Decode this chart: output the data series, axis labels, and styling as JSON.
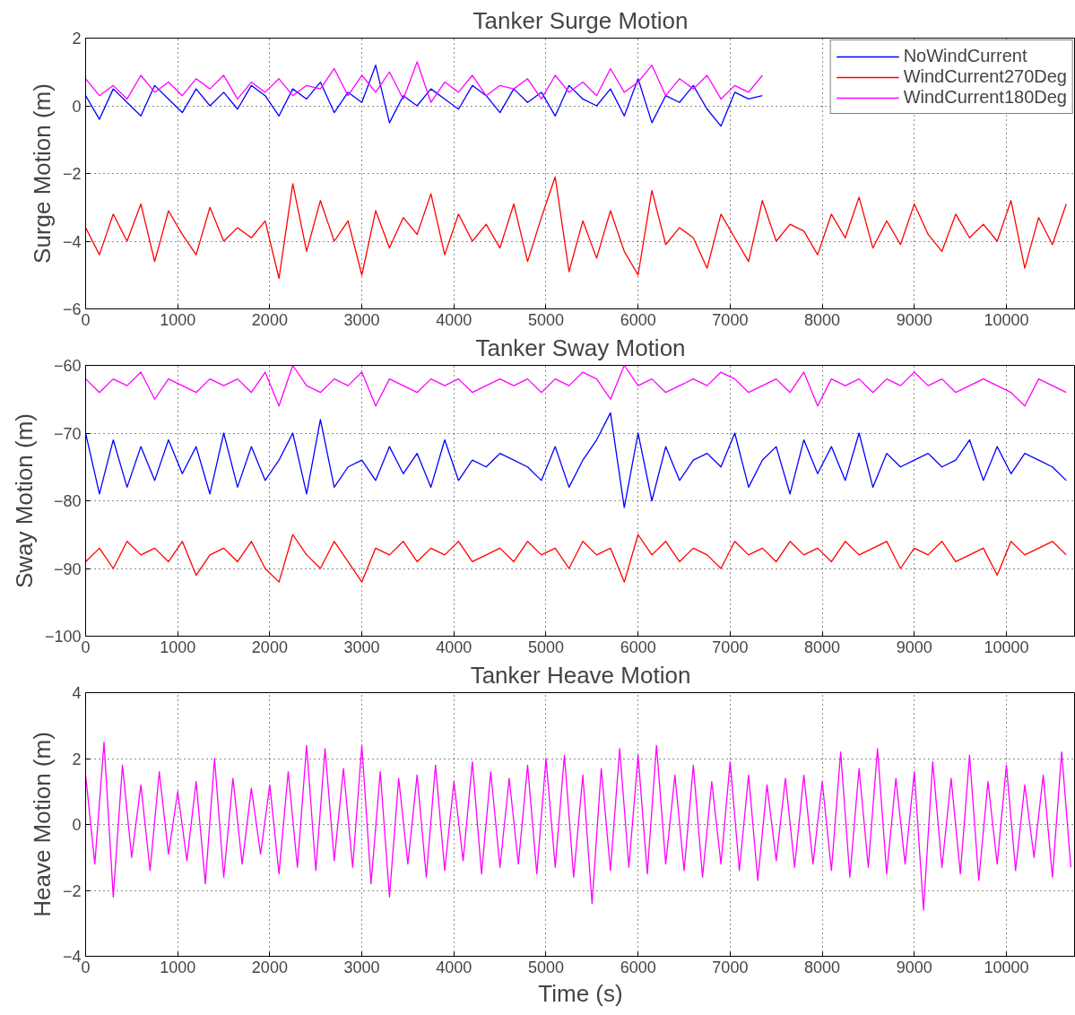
{
  "chart_data": [
    {
      "type": "line",
      "title": "Tanker Surge Motion",
      "ylabel": "Surge Motion (m)",
      "xlim": [
        0,
        10750
      ],
      "xticks": [
        0,
        1000,
        2000,
        3000,
        4000,
        5000,
        6000,
        7000,
        8000,
        9000,
        10000
      ],
      "ylim": [
        -6,
        2
      ],
      "yticks": [
        -6,
        -4,
        -2,
        0,
        2
      ],
      "grid": true,
      "legend": "top right",
      "marker": "none",
      "line_style": "solid",
      "x": [
        0,
        150,
        300,
        450,
        600,
        750,
        900,
        1050,
        1200,
        1350,
        1500,
        1650,
        1800,
        1950,
        2100,
        2250,
        2400,
        2550,
        2700,
        2850,
        3000,
        3150,
        3300,
        3450,
        3600,
        3750,
        3900,
        4050,
        4200,
        4350,
        4500,
        4650,
        4800,
        4950,
        5100,
        5250,
        5400,
        5550,
        5700,
        5850,
        6000,
        6150,
        6300,
        6450,
        6600,
        6750,
        6900,
        7050,
        7200,
        7350,
        7500,
        7650,
        7800,
        7950,
        8100,
        8250,
        8400,
        8550,
        8700,
        8850,
        9000,
        9150,
        9300,
        9450,
        9600,
        9750,
        9900,
        10050,
        10200,
        10350,
        10500,
        10650
      ],
      "series": [
        {
          "name": "NoWindCurrent",
          "color": "#0000ff",
          "values": [
            0.3,
            -0.4,
            0.5,
            0.1,
            -0.3,
            0.6,
            0.2,
            -0.2,
            0.5,
            0.0,
            0.4,
            -0.1,
            0.6,
            0.3,
            -0.3,
            0.5,
            0.2,
            0.7,
            -0.2,
            0.4,
            0.1,
            1.2,
            -0.5,
            0.3,
            0.0,
            0.5,
            0.2,
            -0.1,
            0.6,
            0.3,
            -0.2,
            0.5,
            0.1,
            0.4,
            -0.3,
            0.6,
            0.2,
            0.0,
            0.5,
            -0.3,
            0.8,
            -0.5,
            0.3,
            0.1,
            0.6,
            -0.1,
            -0.6,
            0.4,
            0.2,
            0.3,
            null,
            null,
            null,
            null,
            null,
            null,
            null,
            null,
            null,
            null,
            null,
            null,
            null,
            null,
            null,
            null,
            null,
            null,
            null,
            null,
            null,
            null
          ]
        },
        {
          "name": "WindCurrent270Deg",
          "color": "#ff0000",
          "values": [
            -3.6,
            -4.4,
            -3.2,
            -4.0,
            -2.9,
            -4.6,
            -3.1,
            -3.8,
            -4.4,
            -3.0,
            -4.0,
            -3.6,
            -3.9,
            -3.4,
            -5.1,
            -2.3,
            -4.3,
            -2.8,
            -4.0,
            -3.4,
            -5.0,
            -3.1,
            -4.2,
            -3.3,
            -3.8,
            -2.6,
            -4.4,
            -3.2,
            -4.0,
            -3.5,
            -4.2,
            -2.9,
            -4.6,
            -3.3,
            -2.1,
            -4.9,
            -3.4,
            -4.5,
            -3.1,
            -4.3,
            -5.0,
            -2.5,
            -4.1,
            -3.6,
            -3.9,
            -4.8,
            -3.2,
            -3.9,
            -4.6,
            -2.8,
            -4.0,
            -3.5,
            -3.7,
            -4.4,
            -3.2,
            -3.9,
            -2.7,
            -4.2,
            -3.4,
            -4.1,
            -2.9,
            -3.8,
            -4.3,
            -3.2,
            -3.9,
            -3.5,
            -4.0,
            -2.8,
            -4.8,
            -3.3,
            -4.1,
            -2.9
          ]
        },
        {
          "name": "WindCurrent180Deg",
          "color": "#ff00ff",
          "values": [
            0.8,
            0.3,
            0.6,
            0.2,
            0.9,
            0.4,
            0.7,
            0.3,
            0.8,
            0.5,
            0.9,
            0.2,
            0.7,
            0.4,
            0.8,
            0.3,
            0.6,
            0.5,
            1.1,
            0.3,
            0.9,
            0.4,
            1.0,
            0.2,
            1.3,
            0.1,
            0.7,
            0.4,
            0.9,
            0.3,
            0.6,
            0.5,
            0.8,
            0.2,
            0.9,
            0.4,
            0.7,
            0.3,
            1.1,
            0.4,
            0.7,
            1.2,
            0.3,
            0.8,
            0.5,
            0.9,
            0.2,
            0.6,
            0.4,
            0.9,
            null,
            null,
            null,
            null,
            null,
            null,
            null,
            null,
            null,
            null,
            null,
            null,
            null,
            null,
            null,
            null,
            null,
            null,
            null,
            null,
            null,
            null
          ]
        }
      ]
    },
    {
      "type": "line",
      "title": "Tanker Sway Motion",
      "ylabel": "Sway Motion (m)",
      "xlim": [
        0,
        10750
      ],
      "xticks": [
        0,
        1000,
        2000,
        3000,
        4000,
        5000,
        6000,
        7000,
        8000,
        9000,
        10000
      ],
      "ylim": [
        -100,
        -60
      ],
      "yticks": [
        -100,
        -90,
        -80,
        -70,
        -60
      ],
      "grid": true,
      "marker": "none",
      "line_style": "solid",
      "x": [
        0,
        150,
        300,
        450,
        600,
        750,
        900,
        1050,
        1200,
        1350,
        1500,
        1650,
        1800,
        1950,
        2100,
        2250,
        2400,
        2550,
        2700,
        2850,
        3000,
        3150,
        3300,
        3450,
        3600,
        3750,
        3900,
        4050,
        4200,
        4350,
        4500,
        4650,
        4800,
        4950,
        5100,
        5250,
        5400,
        5550,
        5700,
        5850,
        6000,
        6150,
        6300,
        6450,
        6600,
        6750,
        6900,
        7050,
        7200,
        7350,
        7500,
        7650,
        7800,
        7950,
        8100,
        8250,
        8400,
        8550,
        8700,
        8850,
        9000,
        9150,
        9300,
        9450,
        9600,
        9750,
        9900,
        10050,
        10200,
        10350,
        10500,
        10650
      ],
      "series": [
        {
          "color": "#ff00ff",
          "values": [
            -62,
            -64,
            -62,
            -63,
            -61,
            -65,
            -62,
            -63,
            -64,
            -62,
            -63,
            -62,
            -64,
            -61,
            -66,
            -60,
            -63,
            -64,
            -62,
            -63,
            -61,
            -66,
            -62,
            -63,
            -64,
            -62,
            -63,
            -62,
            -64,
            -63,
            -62,
            -63,
            -62,
            -64,
            -62,
            -63,
            -61,
            -62,
            -65,
            -60,
            -63,
            -62,
            -64,
            -63,
            -62,
            -63,
            -61,
            -62,
            -64,
            -63,
            -62,
            -64,
            -61,
            -66,
            -62,
            -63,
            -62,
            -64,
            -62,
            -63,
            -61,
            -63,
            -62,
            -64,
            -63,
            -62,
            -63,
            -64,
            -66,
            -62,
            -63,
            -64
          ]
        },
        {
          "color": "#0000ff",
          "values": [
            -70,
            -79,
            -71,
            -78,
            -72,
            -77,
            -71,
            -76,
            -72,
            -79,
            -70,
            -78,
            -72,
            -77,
            -74,
            -70,
            -79,
            -68,
            -78,
            -75,
            -74,
            -77,
            -72,
            -76,
            -73,
            -78,
            -71,
            -77,
            -74,
            -75,
            -73,
            -74,
            -75,
            -77,
            -72,
            -78,
            -74,
            -71,
            -67,
            -81,
            -70,
            -80,
            -72,
            -77,
            -74,
            -73,
            -75,
            -70,
            -78,
            -74,
            -72,
            -79,
            -71,
            -76,
            -72,
            -77,
            -70,
            -78,
            -73,
            -75,
            -74,
            -73,
            -75,
            -74,
            -71,
            -77,
            -72,
            -76,
            -73,
            -74,
            -75,
            -77
          ]
        },
        {
          "color": "#ff0000",
          "values": [
            -89,
            -87,
            -90,
            -86,
            -88,
            -87,
            -89,
            -86,
            -91,
            -88,
            -87,
            -89,
            -86,
            -90,
            -92,
            -85,
            -88,
            -90,
            -86,
            -89,
            -92,
            -87,
            -88,
            -86,
            -89,
            -87,
            -88,
            -86,
            -89,
            -88,
            -87,
            -89,
            -86,
            -88,
            -87,
            -90,
            -86,
            -88,
            -87,
            -92,
            -85,
            -88,
            -86,
            -89,
            -87,
            -88,
            -90,
            -86,
            -88,
            -87,
            -89,
            -86,
            -88,
            -87,
            -89,
            -86,
            -88,
            -87,
            -86,
            -90,
            -87,
            -88,
            -86,
            -89,
            -88,
            -87,
            -91,
            -86,
            -88,
            -87,
            -86,
            -88
          ]
        }
      ]
    },
    {
      "type": "line",
      "title": "Tanker Heave Motion",
      "ylabel": "Heave Motion (m)",
      "xlabel": "Time (s)",
      "xlim": [
        0,
        10750
      ],
      "xticks": [
        0,
        1000,
        2000,
        3000,
        4000,
        5000,
        6000,
        7000,
        8000,
        9000,
        10000
      ],
      "ylim": [
        -4,
        4
      ],
      "yticks": [
        -4,
        -2,
        0,
        2,
        4
      ],
      "grid": true,
      "marker": "none",
      "line_style": "solid",
      "x": [
        0,
        100,
        200,
        300,
        400,
        500,
        600,
        700,
        800,
        900,
        1000,
        1100,
        1200,
        1300,
        1400,
        1500,
        1600,
        1700,
        1800,
        1900,
        2000,
        2100,
        2200,
        2300,
        2400,
        2500,
        2600,
        2700,
        2800,
        2900,
        3000,
        3100,
        3200,
        3300,
        3400,
        3500,
        3600,
        3700,
        3800,
        3900,
        4000,
        4100,
        4200,
        4300,
        4400,
        4500,
        4600,
        4700,
        4800,
        4900,
        5000,
        5100,
        5200,
        5300,
        5400,
        5500,
        5600,
        5700,
        5800,
        5900,
        6000,
        6100,
        6200,
        6300,
        6400,
        6500,
        6600,
        6700,
        6800,
        6900,
        7000,
        7100,
        7200,
        7300,
        7400,
        7500,
        7600,
        7700,
        7800,
        7900,
        8000,
        8100,
        8200,
        8300,
        8400,
        8500,
        8600,
        8700,
        8800,
        8900,
        9000,
        9100,
        9200,
        9300,
        9400,
        9500,
        9600,
        9700,
        9800,
        9900,
        10000,
        10100,
        10200,
        10300,
        10400,
        10500,
        10600,
        10700
      ],
      "series": [
        {
          "color": "#ff00ff",
          "values": [
            1.5,
            -1.2,
            2.5,
            -2.2,
            1.8,
            -1.0,
            1.2,
            -1.4,
            1.6,
            -0.9,
            1.0,
            -1.1,
            1.3,
            -1.8,
            2.0,
            -1.6,
            1.4,
            -1.2,
            1.1,
            -0.9,
            1.2,
            -1.5,
            1.6,
            -1.3,
            2.4,
            -1.4,
            2.3,
            -1.1,
            1.7,
            -1.3,
            2.4,
            -1.8,
            1.6,
            -2.2,
            1.4,
            -1.2,
            1.5,
            -1.6,
            1.8,
            -1.4,
            1.3,
            -1.1,
            1.9,
            -1.5,
            1.6,
            -1.3,
            1.4,
            -1.2,
            1.8,
            -1.5,
            2.0,
            -1.3,
            2.1,
            -1.6,
            1.5,
            -2.4,
            1.7,
            -1.4,
            2.3,
            -1.3,
            2.1,
            -1.5,
            2.4,
            -1.2,
            1.5,
            -1.4,
            1.8,
            -1.6,
            1.3,
            -1.2,
            1.9,
            -1.4,
            1.5,
            -1.7,
            1.2,
            -1.1,
            1.4,
            -1.3,
            1.5,
            -1.2,
            1.3,
            -1.4,
            2.2,
            -1.6,
            1.7,
            -1.3,
            2.3,
            -1.5,
            1.4,
            -1.2,
            1.6,
            -2.6,
            1.9,
            -1.3,
            1.4,
            -1.5,
            2.1,
            -1.7,
            1.3,
            -1.2,
            1.8,
            -1.4,
            1.2,
            -1.0,
            1.5,
            -1.6,
            2.2,
            -1.3
          ]
        }
      ]
    }
  ]
}
